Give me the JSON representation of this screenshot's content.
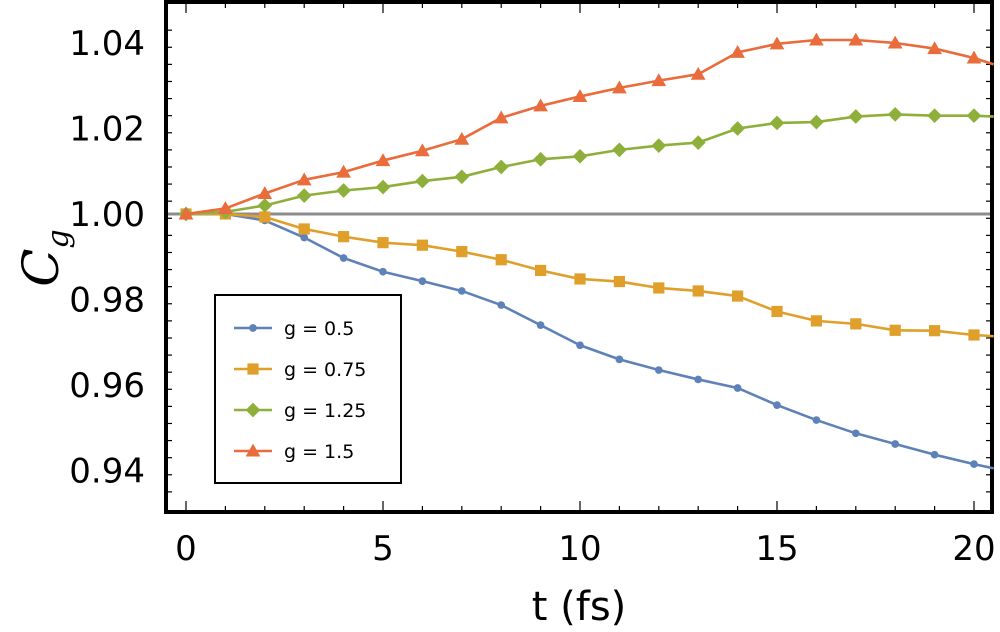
{
  "chart_data": {
    "type": "line",
    "xlabel": "t (fs)",
    "ylabel_main": "C",
    "ylabel_sub": "g",
    "xlim": [
      -0.6,
      20.5
    ],
    "ylim": [
      0.9305,
      1.0495
    ],
    "xticks": [
      0,
      5,
      10,
      15,
      20
    ],
    "yticks": [
      0.94,
      0.96,
      0.98,
      1.0,
      1.02,
      1.04
    ],
    "xtick_labels": [
      "0",
      "5",
      "10",
      "15",
      "20"
    ],
    "ytick_labels": [
      "0.94",
      "0.96",
      "0.98",
      "1.00",
      "1.02",
      "1.04"
    ],
    "reference_line": 1.0,
    "reference_color": "#8c8c8c",
    "legend_position": "bottom-left",
    "grid": false,
    "x": [
      0,
      1,
      2,
      3,
      4,
      5,
      6,
      7,
      8,
      9,
      10,
      11,
      12,
      13,
      14,
      15,
      16,
      17,
      18,
      19,
      20,
      20.5
    ],
    "series": [
      {
        "name": "g = 0.5",
        "color": "#5e82b8",
        "marker": "circle",
        "values": [
          1.0,
          1.0,
          0.9985,
          0.9945,
          0.9897,
          0.9865,
          0.9843,
          0.982,
          0.9787,
          0.974,
          0.9693,
          0.966,
          0.9635,
          0.9613,
          0.9593,
          0.9553,
          0.9518,
          0.9487,
          0.9462,
          0.9437,
          0.9415,
          0.9405
        ]
      },
      {
        "name": "g = 0.75",
        "color": "#e09f2b",
        "marker": "square",
        "values": [
          1.0,
          1.0,
          0.9993,
          0.9965,
          0.9947,
          0.9933,
          0.9927,
          0.9912,
          0.9893,
          0.9868,
          0.9848,
          0.9842,
          0.9827,
          0.982,
          0.9808,
          0.9772,
          0.975,
          0.9743,
          0.9728,
          0.9727,
          0.9717,
          0.9714
        ]
      },
      {
        "name": "g = 1.25",
        "color": "#8eb03b",
        "marker": "diamond",
        "values": [
          1.0,
          1.0005,
          1.002,
          1.0043,
          1.0055,
          1.0063,
          1.0077,
          1.0087,
          1.011,
          1.0128,
          1.0135,
          1.015,
          1.016,
          1.0167,
          1.02,
          1.0213,
          1.0215,
          1.0228,
          1.0233,
          1.023,
          1.023,
          1.0228
        ]
      },
      {
        "name": "g = 1.5",
        "color": "#ea6b3b",
        "marker": "triangle",
        "values": [
          1.0,
          1.0013,
          1.0048,
          1.008,
          1.0098,
          1.0125,
          1.0148,
          1.0175,
          1.0225,
          1.0253,
          1.0275,
          1.0295,
          1.0312,
          1.0327,
          1.0378,
          1.0398,
          1.0407,
          1.0407,
          1.04,
          1.0387,
          1.0365,
          1.035
        ]
      }
    ]
  }
}
